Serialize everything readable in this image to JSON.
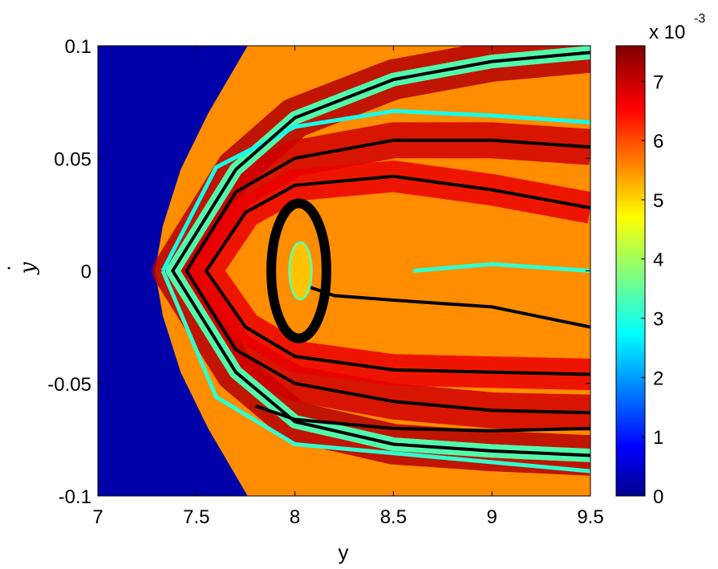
{
  "chart_data": {
    "type": "heatmap",
    "xlabel": "y",
    "ylabel": "y",
    "ylabel_accent": "·",
    "xlim": [
      7,
      9.5
    ],
    "ylim": [
      -0.1,
      0.1
    ],
    "x_ticks": [
      {
        "value": 7,
        "label": "7"
      },
      {
        "value": 7.5,
        "label": "7.5"
      },
      {
        "value": 8,
        "label": "8"
      },
      {
        "value": 8.5,
        "label": "8.5"
      },
      {
        "value": 9,
        "label": "9"
      },
      {
        "value": 9.5,
        "label": "9.5"
      }
    ],
    "y_ticks": [
      {
        "value": -0.1,
        "label": "-0.1"
      },
      {
        "value": -0.05,
        "label": "-0.05"
      },
      {
        "value": 0,
        "label": "0"
      },
      {
        "value": 0.05,
        "label": "0.05"
      },
      {
        "value": 0.1,
        "label": "0.1"
      }
    ],
    "colorbar": {
      "colormap": "jet",
      "range": [
        0,
        7.6
      ],
      "exponent_label": "x 10",
      "exponent": "-3",
      "ticks": [
        {
          "value": 0,
          "label": "0"
        },
        {
          "value": 1,
          "label": "1"
        },
        {
          "value": 2,
          "label": "2"
        },
        {
          "value": 3,
          "label": "3"
        },
        {
          "value": 4,
          "label": "4"
        },
        {
          "value": 5,
          "label": "5"
        },
        {
          "value": 6,
          "label": "6"
        },
        {
          "value": 7,
          "label": "7"
        }
      ]
    },
    "background_value": 0.3,
    "escape_boundary": {
      "vertex": [
        7.29,
        0
      ],
      "points": [
        [
          7.29,
          0
        ],
        [
          7.33,
          0.02
        ],
        [
          7.42,
          0.045
        ],
        [
          7.56,
          0.07
        ],
        [
          7.76,
          0.1
        ]
      ],
      "description_value": "outside region escapes"
    },
    "curves": [
      {
        "kind": "open",
        "points": [
          [
            9.5,
            0.097
          ],
          [
            9.0,
            0.093
          ],
          [
            8.5,
            0.085
          ],
          [
            8.0,
            0.068
          ],
          [
            7.7,
            0.045
          ],
          [
            7.38,
            0
          ],
          [
            7.7,
            -0.045
          ],
          [
            8.0,
            -0.067
          ],
          [
            8.5,
            -0.077
          ],
          [
            9.0,
            -0.08
          ],
          [
            9.5,
            -0.082
          ]
        ]
      },
      {
        "kind": "open",
        "points": [
          [
            9.5,
            0.055
          ],
          [
            9.0,
            0.058
          ],
          [
            8.5,
            0.058
          ],
          [
            8.0,
            0.05
          ],
          [
            7.7,
            0.035
          ],
          [
            7.45,
            0
          ],
          [
            7.7,
            -0.035
          ],
          [
            8.0,
            -0.05
          ],
          [
            8.5,
            -0.058
          ],
          [
            9.0,
            -0.062
          ],
          [
            9.5,
            -0.063
          ]
        ]
      },
      {
        "kind": "open",
        "points": [
          [
            9.5,
            0.028
          ],
          [
            9.0,
            0.036
          ],
          [
            8.5,
            0.042
          ],
          [
            8.0,
            0.038
          ],
          [
            7.75,
            0.026
          ],
          [
            7.55,
            0
          ],
          [
            7.75,
            -0.025
          ],
          [
            8.0,
            -0.038
          ],
          [
            8.5,
            -0.044
          ],
          [
            9.0,
            -0.045
          ],
          [
            9.5,
            -0.046
          ]
        ]
      },
      {
        "kind": "open",
        "points": [
          [
            9.5,
            -0.025
          ],
          [
            9.0,
            -0.016
          ],
          [
            8.5,
            -0.013
          ],
          [
            8.2,
            -0.011
          ],
          [
            8.0,
            -0.005
          ]
        ]
      },
      {
        "kind": "open",
        "points": [
          [
            9.5,
            -0.07
          ],
          [
            9.0,
            -0.071
          ],
          [
            8.5,
            -0.07
          ],
          [
            8.0,
            -0.066
          ],
          [
            7.8,
            -0.06
          ]
        ]
      },
      {
        "kind": "island",
        "center": [
          8.02,
          0
        ],
        "rx": 0.28,
        "ry": 0.012
      }
    ],
    "bands": [
      {
        "value": 7.2,
        "half_width": 0.009,
        "curve": 0
      },
      {
        "value": 7.0,
        "half_width": 0.008,
        "curve": 1
      },
      {
        "value": 6.8,
        "half_width": 0.007,
        "curve": 2
      },
      {
        "value": 3.6,
        "half_width": 0.003,
        "curve": 6
      },
      {
        "value": 3.4,
        "half_width": 0.003,
        "curve": 7
      }
    ],
    "ridges": [
      {
        "value": 3.2,
        "points": [
          [
            8.6,
            0.0
          ],
          [
            9.0,
            0.003
          ],
          [
            9.5,
            0.0
          ]
        ]
      },
      {
        "value": 3.0,
        "points": [
          [
            9.5,
            0.066
          ],
          [
            9.0,
            0.069
          ],
          [
            8.5,
            0.071
          ],
          [
            8.0,
            0.064
          ],
          [
            7.6,
            0.046
          ],
          [
            7.33,
            0
          ]
        ]
      },
      {
        "value": 3.2,
        "points": [
          [
            9.5,
            -0.089
          ],
          [
            9.0,
            -0.085
          ],
          [
            8.5,
            -0.081
          ],
          [
            8.0,
            -0.077
          ],
          [
            7.6,
            -0.056
          ],
          [
            7.33,
            0
          ]
        ]
      }
    ]
  }
}
